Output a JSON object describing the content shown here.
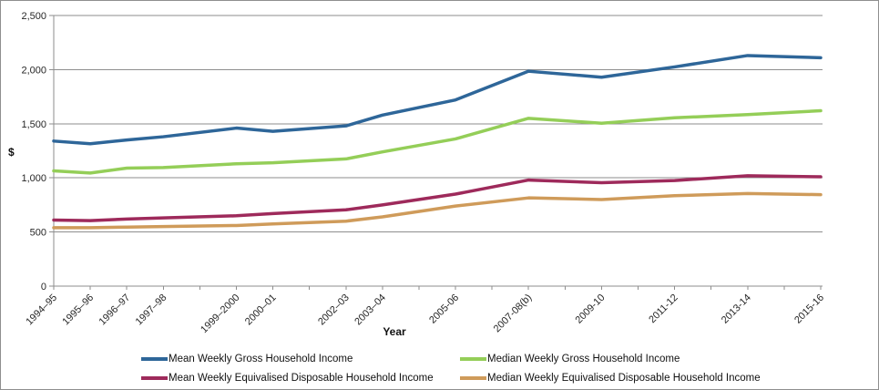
{
  "chart_data": {
    "type": "line",
    "title": "",
    "xlabel": "Year",
    "ylabel": "$",
    "ylim": [
      0,
      2500
    ],
    "y_tick_step": 500,
    "y_tick_labels": [
      "0",
      "500",
      "1,000",
      "1,500",
      "2,000",
      "2,500"
    ],
    "grid": "horizontal-only",
    "legend_position": "bottom-two-columns",
    "categories": [
      "1994–95",
      "1995–96",
      "1996–97",
      "1997–98",
      "1999–2000",
      "2000–01",
      "2002–03",
      "2003–04",
      "2005-06",
      "2007-08(b)",
      "2009-10",
      "2011-12",
      "2013-14",
      "2015-16"
    ],
    "year_index": [
      0,
      1,
      2,
      3,
      5,
      6,
      8,
      9,
      11,
      13,
      15,
      17,
      19,
      21
    ],
    "total_year_span": 21,
    "axis_color": "#8e8e8e",
    "gridline_color": "#8e8e8e",
    "series": [
      {
        "name": "Mean Weekly Gross Household Income",
        "color": "#2e6699",
        "values": [
          1340,
          1315,
          1350,
          1380,
          1460,
          1430,
          1480,
          1580,
          1720,
          1985,
          1930,
          2025,
          2130,
          2110
        ]
      },
      {
        "name": "Median Weekly Gross Household Income",
        "color": "#94ce58",
        "values": [
          1065,
          1045,
          1090,
          1095,
          1130,
          1140,
          1175,
          1240,
          1360,
          1550,
          1505,
          1555,
          1585,
          1620
        ]
      },
      {
        "name": "Mean Weekly Equivalised Disposable Household Income",
        "color": "#9e2a5b",
        "values": [
          610,
          605,
          620,
          630,
          650,
          670,
          705,
          750,
          850,
          980,
          955,
          975,
          1020,
          1010
        ]
      },
      {
        "name": "Median Weekly Equivalised Disposable Household Income",
        "color": "#cf9b5a",
        "values": [
          540,
          540,
          545,
          550,
          560,
          575,
          600,
          640,
          740,
          815,
          800,
          835,
          855,
          845
        ]
      }
    ]
  }
}
